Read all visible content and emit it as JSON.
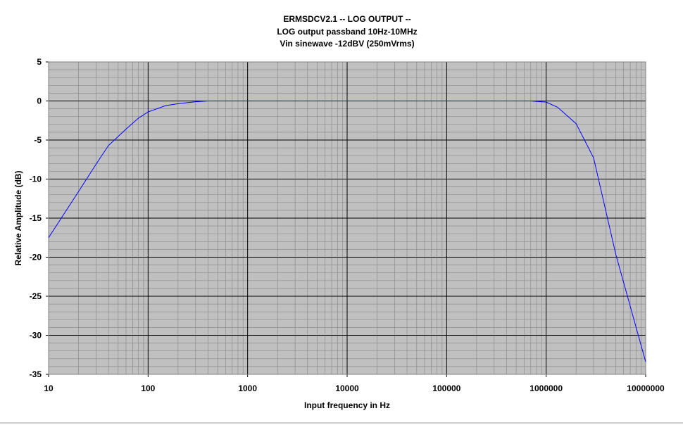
{
  "chart_data": {
    "type": "line",
    "title": "ERMSDCV2.1 -- LOG OUTPUT --",
    "subtitle": [
      "LOG output passband 10Hz-10MHz",
      "Vin sinewave -12dBV (250mVrms)"
    ],
    "x_label": "Input frequency in Hz",
    "y_label": "Relative Amplitude (dB)",
    "x": [
      10,
      20,
      30,
      40,
      60,
      80,
      100,
      150,
      200,
      300,
      400,
      1000,
      10000,
      100000,
      700000,
      1000000,
      1300000,
      2000000,
      3000000,
      5000000,
      10000000
    ],
    "series": [
      {
        "name": "Relative Amplitude",
        "color": "#0000ff",
        "values": [
          -17.5,
          -11.6,
          -8.1,
          -5.7,
          -3.6,
          -2.2,
          -1.4,
          -0.6,
          -0.35,
          -0.1,
          0,
          0,
          0,
          0,
          0,
          -0.15,
          -0.8,
          -2.9,
          -7.3,
          -19.6,
          -33.4
        ]
      }
    ],
    "xscale": "log",
    "xlim": [
      10,
      10000000
    ],
    "xticks": [
      10,
      100,
      1000,
      10000,
      100000,
      1000000,
      10000000
    ],
    "ylim": [
      -35,
      5
    ],
    "yticks": [
      -35,
      -30,
      -25,
      -20,
      -15,
      -10,
      -5,
      0,
      5
    ],
    "grid": true,
    "background": "#c0c0c0"
  }
}
